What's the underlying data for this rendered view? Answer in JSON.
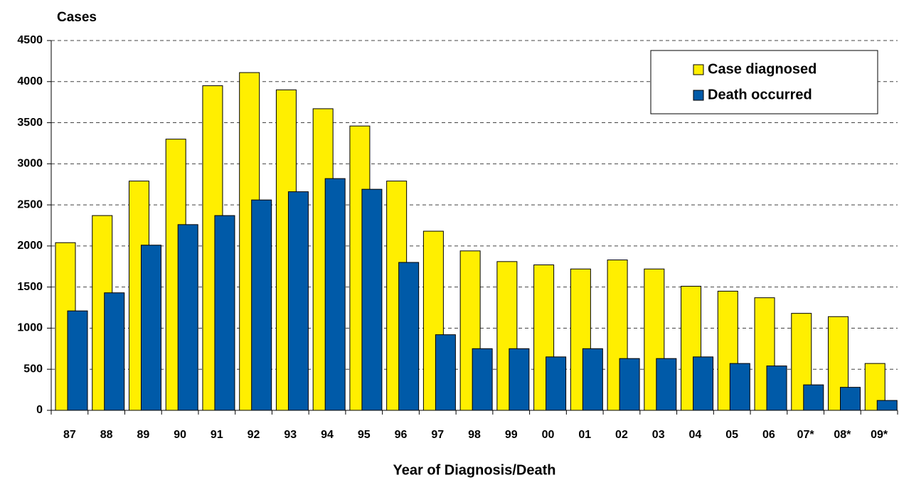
{
  "chart_data": {
    "type": "bar",
    "y_label": "Cases",
    "x_label": "Year of Diagnosis/Death",
    "categories": [
      "87",
      "88",
      "89",
      "90",
      "91",
      "92",
      "93",
      "94",
      "95",
      "96",
      "97",
      "98",
      "99",
      "00",
      "01",
      "02",
      "03",
      "04",
      "05",
      "06",
      "07*",
      "08*",
      "09*"
    ],
    "series": [
      {
        "name": "Case diagnosed",
        "color": "#ffef00",
        "values": [
          2040,
          2370,
          2790,
          3300,
          3950,
          4110,
          3900,
          3670,
          3460,
          2790,
          2180,
          1940,
          1810,
          1770,
          1720,
          1830,
          1720,
          1510,
          1450,
          1370,
          1180,
          1140,
          570
        ]
      },
      {
        "name": "Death occurred",
        "color": "#005aa8",
        "values": [
          1210,
          1430,
          2010,
          2260,
          2370,
          2560,
          2660,
          2820,
          2690,
          1800,
          920,
          750,
          750,
          650,
          750,
          630,
          630,
          650,
          570,
          540,
          310,
          280,
          120
        ]
      }
    ],
    "ylim": [
      0,
      4500
    ],
    "yticks": [
      0,
      500,
      1000,
      1500,
      2000,
      2500,
      3000,
      3500,
      4000,
      4500
    ],
    "grid": true,
    "legend": "top-right"
  }
}
